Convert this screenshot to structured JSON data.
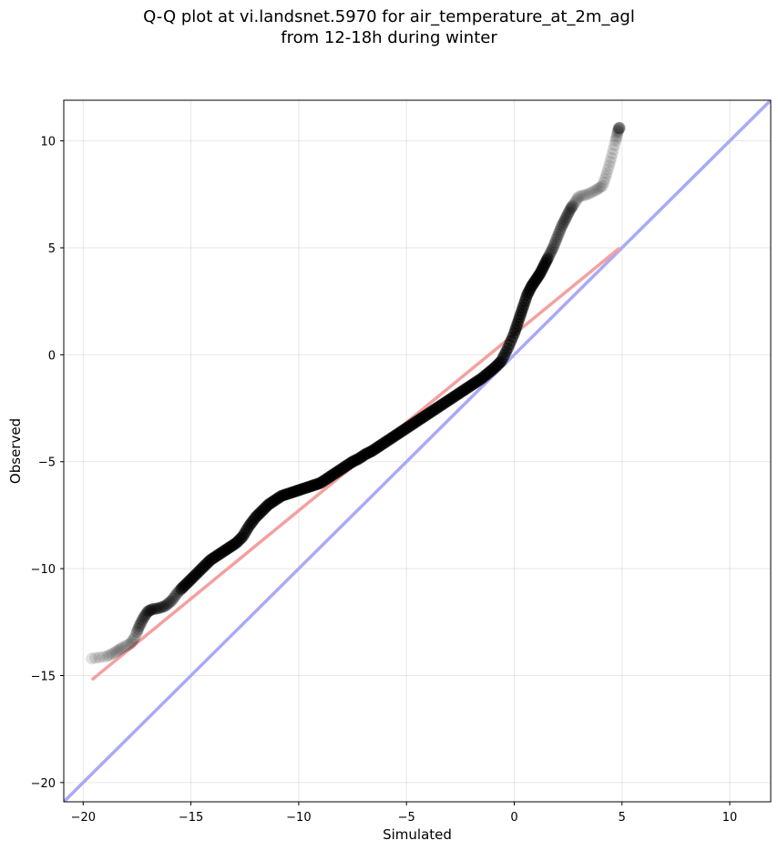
{
  "chart_data": {
    "type": "scatter",
    "title": [
      "Q-Q plot at vi.landsnet.5970 for air_temperature_at_2m_agl",
      "from 12-18h during winter"
    ],
    "xlabel": "Simulated",
    "ylabel": "Observed",
    "xlim": [
      -20.9,
      11.9
    ],
    "ylim": [
      -20.9,
      11.9
    ],
    "xticks": [
      -20,
      -15,
      -10,
      -5,
      0,
      5,
      10
    ],
    "yticks": [
      -20,
      -15,
      -10,
      -5,
      0,
      5,
      10
    ],
    "xtick_labels": [
      "−20",
      "−15",
      "−10",
      "−5",
      "0",
      "5",
      "10"
    ],
    "ytick_labels": [
      "−20",
      "−15",
      "−10",
      "−5",
      "0",
      "5",
      "10"
    ],
    "grid": true,
    "points": {
      "color": "#000000",
      "x": [
        -19.6,
        -18.9,
        -18.5,
        -18.2,
        -17.8,
        -17.6,
        -17.4,
        -17.2,
        -17.0,
        -16.8,
        -16.5,
        -16.2,
        -15.9,
        -15.6,
        -15.3,
        -15.0,
        -14.7,
        -14.4,
        -14.1,
        -13.8,
        -13.5,
        -13.2,
        -12.9,
        -12.6,
        -12.3,
        -12.0,
        -11.7,
        -11.4,
        -11.1,
        -10.8,
        -10.5,
        -10.2,
        -9.9,
        -9.6,
        -9.3,
        -9.0,
        -8.7,
        -8.4,
        -8.1,
        -7.8,
        -7.5,
        -7.2,
        -6.9,
        -6.6,
        -6.3,
        -6.0,
        -5.7,
        -5.4,
        -5.1,
        -4.8,
        -4.5,
        -4.2,
        -3.9,
        -3.6,
        -3.3,
        -3.0,
        -2.7,
        -2.4,
        -2.1,
        -1.8,
        -1.5,
        -1.2,
        -0.9,
        -0.6,
        -0.3,
        0.0,
        0.2,
        0.4,
        0.6,
        0.8,
        1.0,
        1.2,
        1.4,
        1.6,
        1.8,
        2.0,
        2.2,
        2.4,
        2.6,
        2.8,
        3.0,
        3.4,
        3.8,
        4.1,
        4.3,
        4.5,
        4.7,
        4.8,
        4.85,
        4.9
      ],
      "y": [
        -14.2,
        -14.1,
        -13.9,
        -13.7,
        -13.5,
        -13.2,
        -12.7,
        -12.3,
        -12.0,
        -11.9,
        -11.85,
        -11.75,
        -11.5,
        -11.1,
        -10.8,
        -10.5,
        -10.2,
        -9.9,
        -9.6,
        -9.4,
        -9.2,
        -9.0,
        -8.8,
        -8.5,
        -8.0,
        -7.6,
        -7.3,
        -7.0,
        -6.8,
        -6.6,
        -6.5,
        -6.4,
        -6.3,
        -6.2,
        -6.1,
        -6.0,
        -5.8,
        -5.6,
        -5.4,
        -5.2,
        -5.0,
        -4.85,
        -4.65,
        -4.5,
        -4.3,
        -4.1,
        -3.9,
        -3.7,
        -3.5,
        -3.3,
        -3.1,
        -2.9,
        -2.7,
        -2.5,
        -2.3,
        -2.1,
        -1.9,
        -1.7,
        -1.5,
        -1.3,
        -1.1,
        -0.85,
        -0.6,
        -0.3,
        0.3,
        1.0,
        1.6,
        2.2,
        2.8,
        3.2,
        3.5,
        3.8,
        4.2,
        4.6,
        5.0,
        5.5,
        6.0,
        6.4,
        6.8,
        7.1,
        7.4,
        7.5,
        7.7,
        7.9,
        8.5,
        9.2,
        10.0,
        10.4,
        10.6,
        10.6
      ]
    },
    "fit_line": {
      "color": "#f4a0a0",
      "x": [
        -19.6,
        4.9
      ],
      "y": [
        -15.2,
        5.0
      ]
    },
    "identity_line": {
      "color": "#a9aaf6",
      "x": [
        -20.9,
        11.9
      ],
      "y": [
        -20.9,
        11.9
      ]
    }
  }
}
